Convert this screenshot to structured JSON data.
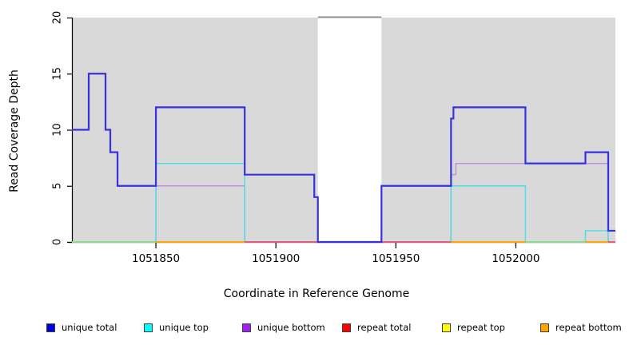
{
  "figure": {
    "x_axis_title": "Coordinate in Reference Genome",
    "y_axis_title": "Read Coverage Depth",
    "plot_background_color": "#d9d9d9",
    "gap_band_color": "#ffffff",
    "gap_band_top_border_color": "#8f8f8f"
  },
  "legend": {
    "items": [
      {
        "label": "unique total",
        "color": "#0000e0"
      },
      {
        "label": "unique top",
        "color": "#00ffff"
      },
      {
        "label": "unique bottom",
        "color": "#a020f0"
      },
      {
        "label": "repeat total",
        "color": "#ff0000"
      },
      {
        "label": "repeat top",
        "color": "#ffff00"
      },
      {
        "label": "repeat bottom",
        "color": "#ffa500"
      }
    ]
  },
  "chart_data": {
    "type": "line",
    "subtype": "step-coverage",
    "title": "",
    "xlabel": "Coordinate in Reference Genome",
    "ylabel": "Read Coverage Depth",
    "xlim": [
      1051815,
      1052041.5
    ],
    "ylim": [
      0,
      20
    ],
    "x_ticks": [
      1051850,
      1051900,
      1051950,
      1052000
    ],
    "y_ticks": [
      0,
      5,
      10,
      15,
      20
    ],
    "grid": false,
    "legend_position": "bottom",
    "gap_band": {
      "x1": 1051917.5,
      "x2": 1051944,
      "note": "white no-data band over gray background"
    },
    "series": [
      {
        "name": "unique bottom",
        "line_color": "#bf8fe0",
        "width": 1.4,
        "end": 1052041.5,
        "points": [
          [
            1051815,
            0
          ],
          [
            1051850,
            5
          ],
          [
            1051887,
            0
          ],
          [
            1051973,
            6
          ],
          [
            1051975,
            7
          ],
          [
            1052038.5,
            0
          ]
        ]
      },
      {
        "name": "unique top",
        "line_color": "#4ddde8",
        "width": 1.4,
        "end": 1052041.5,
        "points": [
          [
            1051815,
            0
          ],
          [
            1051850,
            7
          ],
          [
            1051887,
            0
          ],
          [
            1051973,
            5
          ],
          [
            1052004,
            0
          ],
          [
            1052029,
            1
          ],
          [
            1052038.5,
            0
          ]
        ]
      },
      {
        "name": "unique total",
        "line_color": "#3632dd",
        "width": 2.2,
        "end": 1052041.5,
        "points": [
          [
            1051815,
            10
          ],
          [
            1051822,
            15
          ],
          [
            1051829,
            10
          ],
          [
            1051831,
            8
          ],
          [
            1051834,
            5
          ],
          [
            1051850,
            12
          ],
          [
            1051887,
            6
          ],
          [
            1051916,
            4
          ],
          [
            1051917.5,
            0
          ],
          [
            1051944,
            5
          ],
          [
            1051973,
            11
          ],
          [
            1051974,
            12
          ],
          [
            1052004,
            7
          ],
          [
            1052029,
            8
          ],
          [
            1052038.5,
            1
          ]
        ]
      },
      {
        "name": "repeat total",
        "line_color": "#dc5f80",
        "width": 1.6,
        "end": 1052041.5,
        "points": [
          [
            1051815,
            0
          ]
        ],
        "note": "flat at 0 across plot; visible only in pink baseline segments"
      },
      {
        "name": "repeat top",
        "line_color": "#ffff00",
        "width": 1.6,
        "end": 1052041.5,
        "points": [
          [
            1051815,
            0
          ]
        ],
        "note": "flat at 0; blends with unique top into pale-green baseline segments"
      },
      {
        "name": "repeat bottom",
        "line_color": "#ffa500",
        "width": 1.6,
        "end": 1052041.5,
        "points": [
          [
            1051815,
            0
          ]
        ],
        "note": "flat at 0; visible in orange baseline segments"
      }
    ],
    "baseline_segments": [
      {
        "x1": 1051815,
        "x2": 1051850,
        "color": "#8fd795"
      },
      {
        "x1": 1051850,
        "x2": 1051887,
        "color": "#ffa500"
      },
      {
        "x1": 1051887,
        "x2": 1051917.5,
        "color": "#dc5f80"
      },
      {
        "x1": 1051944,
        "x2": 1051973,
        "color": "#dc5f80"
      },
      {
        "x1": 1051973,
        "x2": 1052004,
        "color": "#ffa500"
      },
      {
        "x1": 1052004,
        "x2": 1052029,
        "color": "#8fd795"
      },
      {
        "x1": 1052029,
        "x2": 1052038.5,
        "color": "#ffa500"
      },
      {
        "x1": 1052038.5,
        "x2": 1052041.5,
        "color": "#dc5f80"
      }
    ]
  }
}
